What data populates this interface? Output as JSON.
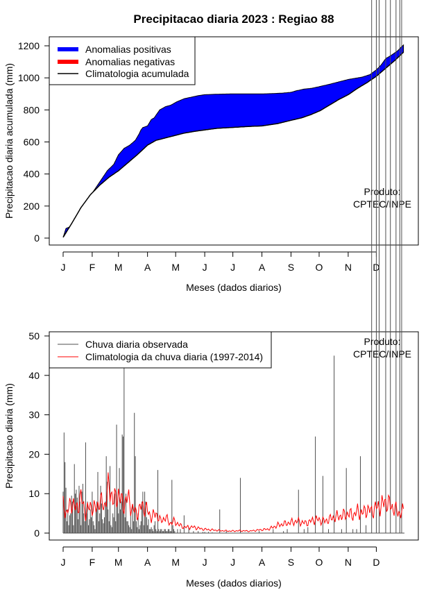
{
  "page_title": "Precipitacao diaria 2023 : Regiao 88",
  "colors": {
    "positive": "#0000ff",
    "negative": "#ff0000",
    "climatology_line": "#000000",
    "observed_bar": "#4d4d4d",
    "climatology_red": "#ff0000"
  },
  "chart_data": [
    {
      "type": "area",
      "xlabel": "Meses (dados diarios)",
      "ylabel": "Precipitacao diaria acumulada (mm)",
      "ylim": [
        0,
        1250
      ],
      "yticks": [
        0,
        200,
        400,
        600,
        800,
        1000,
        1200
      ],
      "xlim": [
        1,
        365
      ],
      "month_ticks": [
        {
          "label": "J",
          "day": 1
        },
        {
          "label": "F",
          "day": 32
        },
        {
          "label": "M",
          "day": 60
        },
        {
          "label": "A",
          "day": 91
        },
        {
          "label": "M",
          "day": 121
        },
        {
          "label": "J",
          "day": 152
        },
        {
          "label": "J",
          "day": 182
        },
        {
          "label": "A",
          "day": 213
        },
        {
          "label": "S",
          "day": 244
        },
        {
          "label": "O",
          "day": 274
        },
        {
          "label": "N",
          "day": 305
        },
        {
          "label": "D",
          "day": 335
        }
      ],
      "legend": {
        "position": "top-left",
        "entries": [
          {
            "label": "Anomalias positivas",
            "color": "#0000ff",
            "style": "thick"
          },
          {
            "label": "Anomalias negativas",
            "color": "#ff0000",
            "style": "thick"
          },
          {
            "label": "Climatologia acumulada",
            "color": "#000000",
            "style": "thin"
          }
        ]
      },
      "annotation": [
        "Produto:",
        "CPTEC/INPE"
      ],
      "observed_cumulative": {
        "days": [
          1,
          4,
          8,
          12,
          16,
          22,
          28,
          33,
          40,
          48,
          55,
          60,
          66,
          72,
          78,
          82,
          84,
          86,
          91,
          95,
          98,
          104,
          110,
          116,
          122,
          130,
          138,
          146,
          152,
          165,
          182,
          200,
          213,
          225,
          235,
          244,
          250,
          258,
          266,
          270,
          274,
          285,
          295,
          305,
          310,
          315,
          320,
          328,
          335,
          340,
          345,
          352,
          358,
          362,
          364
        ],
        "values": [
          5,
          60,
          70,
          100,
          140,
          200,
          250,
          290,
          350,
          420,
          460,
          520,
          560,
          580,
          610,
          650,
          675,
          690,
          700,
          740,
          750,
          800,
          820,
          830,
          850,
          870,
          880,
          890,
          895,
          898,
          900,
          900,
          900,
          902,
          905,
          910,
          920,
          930,
          935,
          940,
          945,
          960,
          975,
          990,
          995,
          1000,
          1005,
          1020,
          1050,
          1080,
          1120,
          1145,
          1170,
          1195,
          1205
        ]
      },
      "climatology_cumulative": {
        "days": [
          1,
          10,
          20,
          30,
          40,
          50,
          60,
          70,
          80,
          91,
          100,
          110,
          120,
          130,
          140,
          152,
          165,
          180,
          200,
          213,
          230,
          244,
          255,
          265,
          275,
          285,
          295,
          305,
          315,
          325,
          335,
          345,
          355,
          364
        ],
        "values": [
          5,
          90,
          190,
          270,
          330,
          380,
          420,
          470,
          520,
          580,
          610,
          625,
          640,
          655,
          665,
          675,
          685,
          690,
          697,
          700,
          715,
          735,
          750,
          770,
          795,
          830,
          865,
          895,
          935,
          970,
          1010,
          1060,
          1110,
          1160
        ]
      }
    },
    {
      "type": "bar",
      "xlabel": "Meses (dados diarios)",
      "ylabel": "Precipitacao diaria (mm)",
      "ylim": [
        0,
        50
      ],
      "yticks": [
        0,
        10,
        20,
        30,
        40,
        50
      ],
      "xlim": [
        1,
        365
      ],
      "month_ticks": [
        {
          "label": "J",
          "day": 1
        },
        {
          "label": "F",
          "day": 32
        },
        {
          "label": "M",
          "day": 60
        },
        {
          "label": "A",
          "day": 91
        },
        {
          "label": "M",
          "day": 121
        },
        {
          "label": "J",
          "day": 152
        },
        {
          "label": "J",
          "day": 182
        },
        {
          "label": "A",
          "day": 213
        },
        {
          "label": "S",
          "day": 244
        },
        {
          "label": "O",
          "day": 274
        },
        {
          "label": "N",
          "day": 305
        },
        {
          "label": "D",
          "day": 335
        }
      ],
      "legend": {
        "position": "top-left",
        "entries": [
          {
            "label": "Chuva diaria observada",
            "color": "#4d4d4d"
          },
          {
            "label": "Climatologia da chuva diaria (1997-2014)",
            "color": "#ff0000"
          }
        ]
      },
      "annotation": [
        "Produto:",
        "CPTEC/INPE"
      ],
      "observed_daily_days": [
        1,
        2,
        3,
        4,
        5,
        6,
        7,
        8,
        9,
        10,
        11,
        12,
        13,
        14,
        15,
        16,
        17,
        18,
        19,
        20,
        21,
        22,
        23,
        24,
        25,
        26,
        27,
        28,
        29,
        30,
        31,
        32,
        33,
        34,
        35,
        36,
        37,
        38,
        39,
        40,
        41,
        42,
        43,
        44,
        45,
        46,
        47,
        48,
        49,
        50,
        51,
        52,
        53,
        54,
        55,
        56,
        57,
        58,
        59,
        60,
        61,
        62,
        63,
        64,
        65,
        66,
        67,
        68,
        69,
        70,
        71,
        72,
        73,
        74,
        75,
        76,
        77,
        78,
        79,
        80,
        81,
        82,
        83,
        84,
        85,
        86,
        87,
        88,
        89,
        90,
        91,
        92,
        93,
        94,
        95,
        96,
        97,
        98,
        99,
        100,
        101,
        102,
        103,
        104,
        105,
        106,
        107,
        108,
        109,
        110,
        111,
        112,
        113,
        114,
        115,
        116,
        117,
        118,
        119,
        120,
        123,
        126,
        130,
        135,
        140,
        145,
        150,
        152,
        156,
        160,
        168,
        175,
        190,
        210,
        225,
        236,
        240,
        252,
        258,
        262,
        270,
        278,
        284,
        290,
        298,
        303,
        310,
        314,
        318,
        324,
        330,
        335,
        338,
        345,
        350,
        356,
        360,
        362
      ],
      "observed_daily_values": [
        10.5,
        25.5,
        18,
        11.5,
        3,
        6,
        2,
        4.5,
        5,
        9.5,
        8,
        2,
        17.5,
        10,
        11,
        9,
        3.5,
        12,
        8,
        2,
        10.5,
        12.5,
        5,
        3,
        23,
        5,
        8,
        2,
        3.5,
        6,
        4,
        10.5,
        3,
        2,
        1,
        5.5,
        8,
        15.5,
        3,
        5,
        12,
        7.5,
        3.5,
        2.5,
        4,
        8,
        19.5,
        13,
        6,
        3,
        17,
        2,
        1.5,
        5,
        4,
        10,
        3,
        27.5,
        8,
        5,
        16.5,
        6,
        8,
        25,
        24.5,
        43,
        4,
        10,
        3,
        3,
        2,
        1.5,
        5,
        1,
        7,
        3,
        30.5,
        19.5,
        3,
        1.5,
        5,
        1,
        2,
        3,
        8,
        10.5,
        2,
        10.5,
        8,
        4,
        2,
        3.5,
        1,
        1,
        1.5,
        1,
        0.5,
        2,
        3,
        1,
        0.5,
        16,
        1,
        0.5,
        1,
        1,
        0.5,
        0.5,
        1,
        1,
        0.5,
        0.5,
        1,
        1,
        0.5,
        0.5,
        13.5,
        2,
        1,
        0.5,
        1,
        1,
        4.5,
        1.5,
        0.5,
        0.5,
        0.3,
        0.3,
        0.3,
        0.2,
        6,
        0.5,
        14,
        0.5,
        1,
        0.5,
        1,
        11,
        1,
        1.5,
        24.5,
        14.5,
        1,
        45,
        1,
        16.5,
        1,
        1,
        19.5,
        2
      ],
      "climatology_daily": {
        "days": [
          1,
          5,
          10,
          15,
          20,
          25,
          30,
          35,
          40,
          45,
          50,
          55,
          60,
          65,
          70,
          75,
          80,
          85,
          90,
          95,
          100,
          105,
          110,
          115,
          120,
          125,
          130,
          140,
          150,
          160,
          170,
          180,
          190,
          200,
          210,
          220,
          230,
          240,
          250,
          260,
          270,
          280,
          290,
          300,
          305,
          310,
          315,
          320,
          325,
          330,
          335,
          340,
          345,
          350,
          355,
          360,
          364
        ],
        "values": [
          7,
          5,
          8,
          6,
          9,
          5,
          7,
          6,
          8,
          7,
          12,
          8,
          10,
          7,
          9,
          6,
          5,
          7,
          6,
          4,
          5,
          3,
          4,
          2.5,
          3,
          2,
          1.5,
          1.5,
          1,
          0.8,
          0.6,
          0.5,
          0.6,
          0.5,
          0.8,
          1,
          2,
          2.5,
          3,
          2.5,
          3.5,
          3,
          4,
          4.5,
          5,
          4.5,
          5.5,
          5,
          6,
          5.5,
          6.5,
          7,
          8,
          7,
          6,
          5,
          5.5
        ]
      }
    }
  ]
}
